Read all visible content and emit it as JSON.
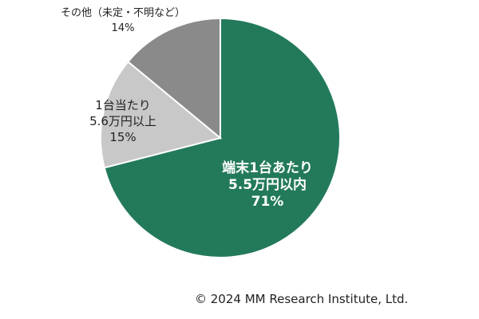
{
  "chart_data": {
    "type": "pie",
    "slices": [
      {
        "label_lines": [
          "端末1台あたり",
          "5.5万円以内"
        ],
        "value": 71,
        "value_label": "71%",
        "color": "#237a5a",
        "label_color": "#ffffff"
      },
      {
        "label_lines": [
          "1台当たり",
          "5.6万円以上"
        ],
        "value": 15,
        "value_label": "15%",
        "color": "#c8c8c8",
        "label_color": "#222222"
      },
      {
        "label_lines": [
          "その他（未定・不明など）"
        ],
        "value": 14,
        "value_label": "14%",
        "color": "#8a8a8a",
        "label_color": "#222222"
      }
    ],
    "start": "12 o'clock",
    "direction": "clockwise"
  },
  "footer": {
    "copyright": "© 2024 MM Research Institute, Ltd."
  }
}
